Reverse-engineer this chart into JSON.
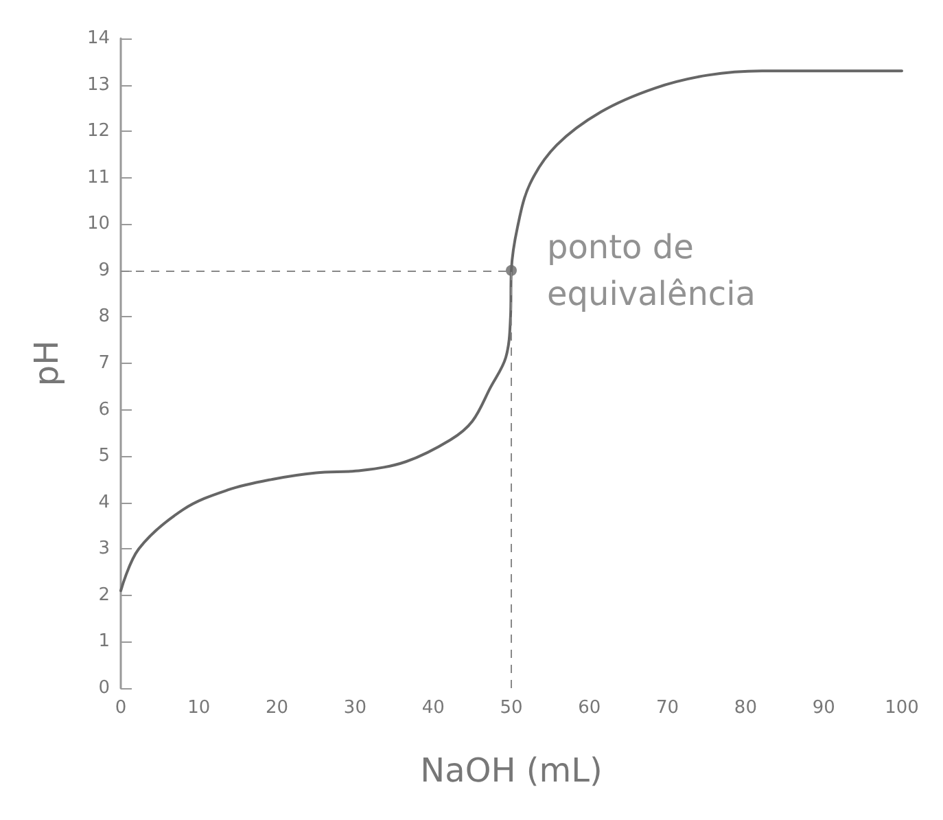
{
  "chart_data": {
    "type": "line",
    "xlabel": "NaOH (mL)",
    "ylabel": "pH",
    "x": [
      0,
      2.3,
      8,
      13.7,
      19.4,
      25,
      30.8,
      36.5,
      42.2,
      45,
      47.3,
      49.3,
      49.9,
      50,
      50.8,
      52.4,
      55.8,
      61.5,
      68.4,
      75.2,
      82.1,
      100
    ],
    "series": [
      {
        "color": "#666666",
        "values": [
          2.1,
          3.0,
          3.85,
          4.27,
          4.5,
          4.64,
          4.69,
          4.88,
          5.35,
          5.75,
          6.47,
          7.13,
          8,
          9,
          9.94,
          10.87,
          11.7,
          12.42,
          12.93,
          13.21,
          13.3,
          13.3
        ]
      }
    ],
    "xlim": [
      0,
      100
    ],
    "xticks": [
      0,
      10,
      20,
      30,
      40,
      50,
      60,
      70,
      80,
      90,
      100
    ],
    "ylim": [
      0,
      14
    ],
    "yticks": [
      0,
      1,
      2,
      3,
      4,
      5,
      6,
      7,
      8,
      9,
      10,
      11,
      12,
      13,
      14
    ],
    "annotations": [
      {
        "text": "ponto de equivalência",
        "x": 50,
        "y": 9
      }
    ],
    "grid": false,
    "marker": "none",
    "line_style": "solid"
  }
}
